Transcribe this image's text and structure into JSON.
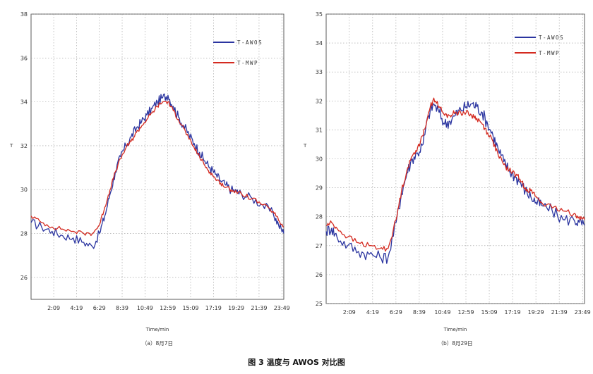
{
  "figure_caption": "图 3   温度与 AWOS 对比图",
  "chart_data": [
    {
      "type": "line",
      "caption": "（a）8月7日",
      "xlabel": "Time/min",
      "ylabel": "T",
      "ylim": [
        25,
        38
      ],
      "y_ticks": [
        "26",
        "28",
        "30",
        "32",
        "34",
        "36",
        "38"
      ],
      "x_ticks": [
        "2:09",
        "4:19",
        "6:29",
        "8:39",
        "10:49",
        "12:59",
        "15:09",
        "17:19",
        "19:29",
        "21:39",
        "23:49"
      ],
      "grid": true,
      "legend_position": "top-right",
      "series": [
        {
          "name": "T-AWOS",
          "color": "#2b35a0",
          "x": [
            "0:00",
            "1:00",
            "2:00",
            "3:00",
            "4:00",
            "5:00",
            "5:50",
            "6:30",
            "7:00",
            "7:30",
            "8:00",
            "8:30",
            "9:00",
            "9:30",
            "10:00",
            "10:30",
            "11:00",
            "11:30",
            "12:00",
            "12:30",
            "13:00",
            "13:30",
            "14:00",
            "14:30",
            "15:00",
            "15:30",
            "16:00",
            "16:30",
            "17:00",
            "17:30",
            "18:00",
            "18:30",
            "19:00",
            "19:30",
            "20:00",
            "21:00",
            "22:00",
            "23:00",
            "23:30",
            "24:00"
          ],
          "values": [
            28.5,
            28.3,
            28.1,
            27.9,
            27.8,
            27.6,
            27.4,
            28.0,
            28.8,
            29.8,
            30.8,
            31.5,
            32.0,
            32.4,
            32.8,
            33.1,
            33.4,
            33.7,
            34.0,
            34.2,
            34.3,
            33.8,
            33.3,
            32.9,
            32.5,
            32.1,
            31.7,
            31.3,
            31.0,
            30.7,
            30.4,
            30.2,
            30.0,
            29.9,
            29.8,
            29.6,
            29.3,
            28.9,
            28.4,
            28.0
          ]
        },
        {
          "name": "T-MWP",
          "color": "#d42a20",
          "x": [
            "0:00",
            "1:00",
            "2:00",
            "3:00",
            "4:00",
            "5:00",
            "5:50",
            "6:30",
            "7:00",
            "7:30",
            "8:00",
            "8:30",
            "9:00",
            "9:30",
            "10:00",
            "10:30",
            "11:00",
            "11:30",
            "12:00",
            "12:30",
            "13:00",
            "13:30",
            "14:00",
            "14:30",
            "15:00",
            "15:30",
            "16:00",
            "16:30",
            "17:00",
            "17:30",
            "18:00",
            "18:30",
            "19:00",
            "19:30",
            "20:00",
            "21:00",
            "22:00",
            "23:00",
            "23:30",
            "24:00"
          ],
          "values": [
            28.8,
            28.5,
            28.3,
            28.2,
            28.1,
            28.0,
            28.0,
            28.4,
            29.2,
            30.0,
            30.8,
            31.4,
            31.9,
            32.2,
            32.6,
            32.9,
            33.2,
            33.5,
            33.8,
            34.0,
            34.0,
            33.6,
            33.2,
            32.8,
            32.3,
            31.9,
            31.5,
            31.1,
            30.8,
            30.5,
            30.3,
            30.1,
            30.0,
            29.9,
            29.8,
            29.6,
            29.3,
            29.0,
            28.6,
            28.3
          ]
        }
      ]
    },
    {
      "type": "line",
      "caption": "（b）8月29日",
      "xlabel": "Time/min",
      "ylabel": "T",
      "ylim": [
        25,
        35
      ],
      "y_ticks": [
        "25",
        "26",
        "27",
        "28",
        "29",
        "30",
        "31",
        "32",
        "33",
        "34",
        "35"
      ],
      "x_ticks": [
        "2:09",
        "4:19",
        "6:29",
        "8:39",
        "10:49",
        "12:59",
        "15:09",
        "17:19",
        "19:29",
        "21:39",
        "23:49"
      ],
      "grid": true,
      "legend_position": "top-right",
      "series": [
        {
          "name": "T-AWOS",
          "color": "#2b35a0",
          "x": [
            "0:00",
            "0:30",
            "1:00",
            "2:00",
            "3:00",
            "4:00",
            "5:00",
            "5:45",
            "6:30",
            "7:00",
            "7:30",
            "8:00",
            "8:30",
            "9:00",
            "9:30",
            "10:00",
            "10:30",
            "11:00",
            "11:30",
            "12:00",
            "12:30",
            "13:00",
            "13:30",
            "14:00",
            "14:30",
            "15:00",
            "15:30",
            "16:00",
            "16:30",
            "17:00",
            "17:30",
            "18:00",
            "18:30",
            "19:00",
            "19:30",
            "20:00",
            "21:00",
            "22:00",
            "23:00",
            "23:30",
            "24:00"
          ],
          "values": [
            27.5,
            27.6,
            27.3,
            27.0,
            26.8,
            26.7,
            26.6,
            26.6,
            27.8,
            28.8,
            29.5,
            30.0,
            30.2,
            30.5,
            31.5,
            31.9,
            31.6,
            31.2,
            31.3,
            31.5,
            31.7,
            31.8,
            31.9,
            31.8,
            31.6,
            31.2,
            30.8,
            30.3,
            29.9,
            29.6,
            29.4,
            29.2,
            28.9,
            28.7,
            28.5,
            28.4,
            28.2,
            27.9,
            27.9,
            27.8,
            27.7
          ]
        },
        {
          "name": "T-MWP",
          "color": "#d42a20",
          "x": [
            "0:00",
            "0:30",
            "1:00",
            "2:00",
            "3:00",
            "4:00",
            "5:00",
            "5:45",
            "6:30",
            "7:00",
            "7:30",
            "8:00",
            "8:30",
            "9:00",
            "9:30",
            "10:00",
            "10:30",
            "11:00",
            "11:30",
            "12:00",
            "12:30",
            "13:00",
            "13:30",
            "14:00",
            "14:30",
            "15:00",
            "15:30",
            "16:00",
            "16:30",
            "17:00",
            "17:30",
            "18:00",
            "18:30",
            "19:00",
            "19:30",
            "20:00",
            "21:00",
            "22:00",
            "23:00",
            "23:30",
            "24:00"
          ],
          "values": [
            27.7,
            27.8,
            27.6,
            27.3,
            27.1,
            27.0,
            26.9,
            26.9,
            27.9,
            28.9,
            29.6,
            30.1,
            30.4,
            30.8,
            31.6,
            32.1,
            31.8,
            31.5,
            31.5,
            31.6,
            31.6,
            31.6,
            31.5,
            31.4,
            31.2,
            30.9,
            30.6,
            30.1,
            29.8,
            29.6,
            29.5,
            29.3,
            29.0,
            28.9,
            28.7,
            28.5,
            28.3,
            28.2,
            28.1,
            28.0,
            27.9
          ]
        }
      ]
    }
  ]
}
